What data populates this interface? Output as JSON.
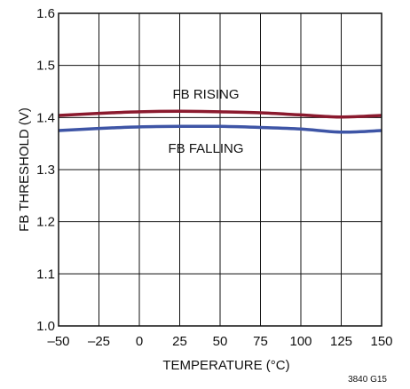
{
  "chart_data": {
    "type": "line",
    "xlabel": "TEMPERATURE (°C)",
    "ylabel": "FB THRESHOLD (V)",
    "xlim": [
      -50,
      150
    ],
    "ylim": [
      1.0,
      1.6
    ],
    "x_ticks": [
      -50,
      -25,
      0,
      25,
      50,
      75,
      100,
      125,
      150
    ],
    "x_tick_labels": [
      "–50",
      "–25",
      "0",
      "25",
      "50",
      "75",
      "100",
      "125",
      "150"
    ],
    "y_ticks": [
      1.0,
      1.1,
      1.2,
      1.3,
      1.4,
      1.5,
      1.6
    ],
    "y_tick_labels": [
      "1.0",
      "1.1",
      "1.2",
      "1.3",
      "1.4",
      "1.5",
      "1.6"
    ],
    "grid": true,
    "series": [
      {
        "name": "FB RISING",
        "color": "#8b1a2e",
        "x": [
          -50,
          -25,
          0,
          25,
          50,
          75,
          100,
          125,
          150
        ],
        "y": [
          1.404,
          1.408,
          1.411,
          1.412,
          1.411,
          1.409,
          1.405,
          1.401,
          1.404
        ]
      },
      {
        "name": "FB FALLING",
        "color": "#3e55a6",
        "x": [
          -50,
          -25,
          0,
          25,
          50,
          75,
          100,
          125,
          150
        ],
        "y": [
          1.375,
          1.379,
          1.382,
          1.383,
          1.383,
          1.381,
          1.378,
          1.372,
          1.375
        ]
      }
    ],
    "annotations": [
      "FB RISING",
      "FB FALLING"
    ],
    "figure_id": "3840 G15"
  }
}
